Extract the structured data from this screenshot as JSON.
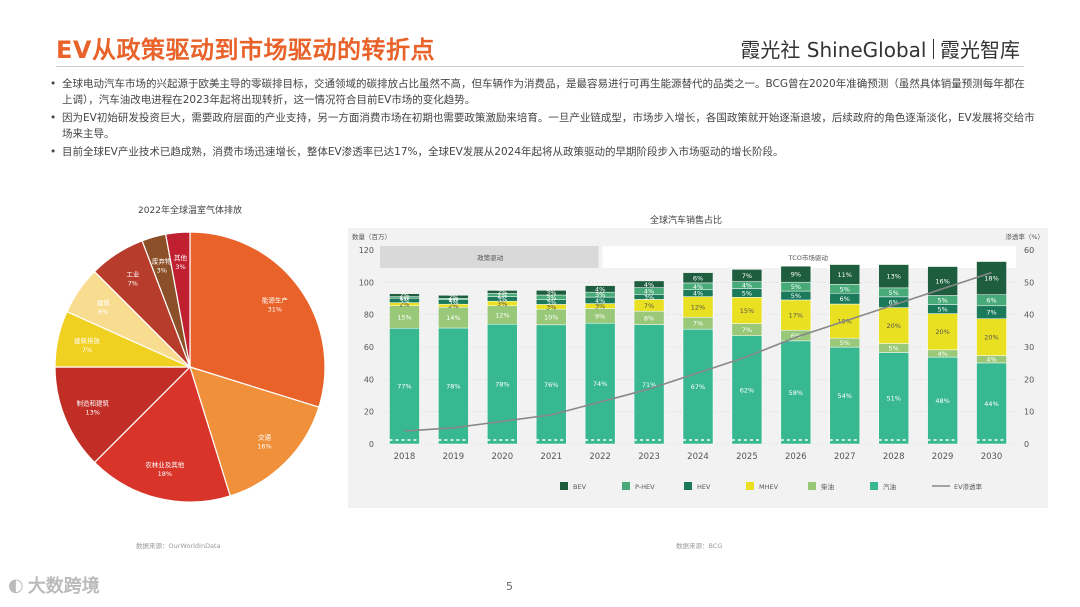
{
  "header": {
    "title": "EV从政策驱动到市场驱动的转折点",
    "brand_left": "霞光社 ShineGlobal",
    "brand_right": "霞光智库"
  },
  "bullets": [
    "全球电动汽车市场的兴起源于欧美主导的零碳排目标，交通领域的碳排放占比虽然不高，但车辆作为消费品，是最容易进行可再生能源替代的品类之一。BCG曾在2020年准确预测（虽然具体销量预测每年都在上调），汽车油改电进程在2023年起将出现转折，这一情况符合目前EV市场的变化趋势。",
    "因为EV初始研发投资巨大，需要政府层面的产业支持，另一方面消费市场在初期也需要政策激励来培育。一旦产业链成型，市场步入增长，各国政策就开始逐渐退坡，后续政府的角色逐渐淡化，EV发展将交给市场来主导。",
    "目前全球EV产业技术已趋成熟，消费市场迅速增长，整体EV渗透率已达17%，全球EV发展从2024年起将从政策驱动的早期阶段步入市场驱动的增长阶段。"
  ],
  "pie": {
    "title": "2022年全球温室气体排放",
    "source": "数据来源：OurWorldInData"
  },
  "bar": {
    "title": "全球汽车销售占比",
    "source": "数据来源：BCG",
    "left_axis_label": "数量（百万）",
    "right_axis_label": "渗透率（%）",
    "phase1_label": "政策驱动",
    "phase2_label": "TCO市场驱动"
  },
  "footer": {
    "watermark": "大数跨境",
    "page": "5"
  },
  "colors": {
    "accent": "#e8622a",
    "pie": [
      "#e8622a",
      "#f0903a",
      "#d8342a",
      "#c02e26",
      "#f0d020",
      "#f8dc90",
      "#b83c2c",
      "#8c5028",
      "#c02030"
    ],
    "bar": {
      "BEV": "#1e5e3e",
      "PHEV": "#48aa78",
      "HEV": "#1a7a5a",
      "MHEV": "#e8e020",
      "ICE_diesel": "#98c878",
      "ICE_petrol": "#38b890",
      "EV_line": "#888888"
    }
  },
  "chart_data": [
    {
      "type": "pie",
      "title": "2022年全球温室气体排放",
      "slices": [
        {
          "label": "能源生产",
          "value": 31
        },
        {
          "label": "交通",
          "value": 16
        },
        {
          "label": "农林业及其他",
          "value": 18
        },
        {
          "label": "制造和建筑",
          "value": 13
        },
        {
          "label": "建筑排放",
          "value": 7
        },
        {
          "label": "建筑",
          "value": 6
        },
        {
          "label": "工业",
          "value": 7
        },
        {
          "label": "废弃物",
          "value": 3
        },
        {
          "label": "其他",
          "value": 3
        }
      ],
      "pct_labels": [
        "31%",
        "16%",
        "18%",
        "13%",
        "7%",
        "6%",
        "7%",
        "3%",
        "3%"
      ]
    },
    {
      "type": "bar",
      "title": "全球汽车销售占比",
      "categories": [
        "2018",
        "2019",
        "2020",
        "2021",
        "2022",
        "2023",
        "2024",
        "2025",
        "2026",
        "2027",
        "2028",
        "2029",
        "2030"
      ],
      "ylim": [
        0,
        120
      ],
      "yticks": [
        0,
        20,
        40,
        60,
        80,
        100,
        120
      ],
      "y2lim": [
        0,
        60
      ],
      "y2ticks": [
        0,
        10,
        20,
        30,
        40,
        50,
        60
      ],
      "ylabel": "数量（百万）",
      "y2label": "渗透率（%）",
      "totals": [
        93,
        92,
        95,
        97,
        101,
        104,
        106,
        108,
        110,
        111,
        111,
        112,
        114
      ],
      "series": [
        {
          "name": "汽油",
          "key": "ICE_petrol",
          "values": [
            77,
            78,
            78,
            76,
            74,
            71,
            67,
            62,
            58,
            54,
            51,
            48,
            44
          ]
        },
        {
          "name": "柴油",
          "key": "ICE_diesel",
          "values": [
            15,
            14,
            12,
            10,
            9,
            8,
            7,
            7,
            6,
            5,
            5,
            4,
            4
          ]
        },
        {
          "name": "MHEV",
          "key": "MHEV",
          "values": [
            2,
            2,
            3,
            3,
            3,
            7,
            12,
            15,
            17,
            19,
            20,
            20,
            20
          ]
        },
        {
          "name": "HEV",
          "key": "HEV",
          "values": [
            3,
            3,
            3,
            3,
            4,
            3,
            4,
            5,
            5,
            6,
            6,
            5,
            7
          ]
        },
        {
          "name": "P-HEV",
          "key": "PHEV",
          "values": [
            1,
            1,
            2,
            3,
            3,
            4,
            4,
            4,
            5,
            5,
            5,
            5,
            6
          ]
        },
        {
          "name": "BEV",
          "key": "BEV",
          "values": [
            2,
            2,
            2,
            3,
            4,
            4,
            6,
            7,
            9,
            11,
            13,
            16,
            18
          ]
        }
      ],
      "segment_labels": [
        [
          "77%",
          "15%",
          "2%",
          "3%",
          "1%",
          "2%"
        ],
        [
          "78%",
          "14%",
          "2%",
          "3%",
          "1%",
          "2%"
        ],
        [
          "78%",
          "12%",
          "3%",
          "3%",
          "2%",
          "2%"
        ],
        [
          "76%",
          "10%",
          "3%",
          "3%",
          "3%",
          "3%"
        ],
        [
          "74%",
          "9%",
          "3%",
          "4%",
          "3%",
          "4%"
        ],
        [
          "71%",
          "8%",
          "7%",
          "3%",
          "4%",
          "4%"
        ],
        [
          "67%",
          "7%",
          "12%",
          "4%",
          "4%",
          "6%"
        ],
        [
          "62%",
          "7%",
          "15%",
          "5%",
          "4%",
          "7%"
        ],
        [
          "58%",
          "6%",
          "17%",
          "5%",
          "5%",
          "9%"
        ],
        [
          "54%",
          "5%",
          "19%",
          "6%",
          "5%",
          "11%"
        ],
        [
          "51%",
          "5%",
          "20%",
          "6%",
          "5%",
          "13%"
        ],
        [
          "48%",
          "4%",
          "20%",
          "5%",
          "5%",
          "16%"
        ],
        [
          "44%",
          "4%",
          "20%",
          "7%",
          "6%",
          "18%"
        ]
      ],
      "line": {
        "name": "EV渗透率",
        "values": [
          4,
          5,
          7,
          9,
          13,
          17,
          22,
          27,
          33,
          38,
          43,
          48,
          53
        ]
      },
      "legend": [
        "BEV",
        "P-HEV",
        "HEV",
        "MHEV",
        "柴油",
        "汽油",
        "EV渗透率"
      ]
    }
  ]
}
